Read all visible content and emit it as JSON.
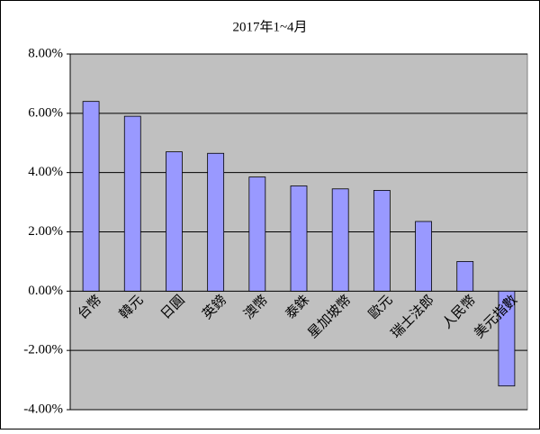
{
  "chart_data": {
    "type": "bar",
    "title": "2017年1~4月",
    "categories": [
      "台幣",
      "韓元",
      "日圓",
      "英鎊",
      "澳幣",
      "泰銖",
      "星加坡幣",
      "歐元",
      "瑞士法郎",
      "人民幣",
      "美元指數"
    ],
    "values": [
      6.4,
      5.9,
      4.7,
      4.65,
      3.85,
      3.55,
      3.45,
      3.4,
      2.35,
      1.0,
      -3.2
    ],
    "color": "#9999ff",
    "ylim": [
      -4,
      8
    ],
    "yticks": [
      {
        "value": -4,
        "label": "-4.00%"
      },
      {
        "value": -2,
        "label": "-2.00%"
      },
      {
        "value": 0,
        "label": "0.00%"
      },
      {
        "value": 2,
        "label": "2.00%"
      },
      {
        "value": 4,
        "label": "4.00%"
      },
      {
        "value": 6,
        "label": "6.00%"
      },
      {
        "value": 8,
        "label": "8.00%"
      }
    ],
    "grid": true
  }
}
